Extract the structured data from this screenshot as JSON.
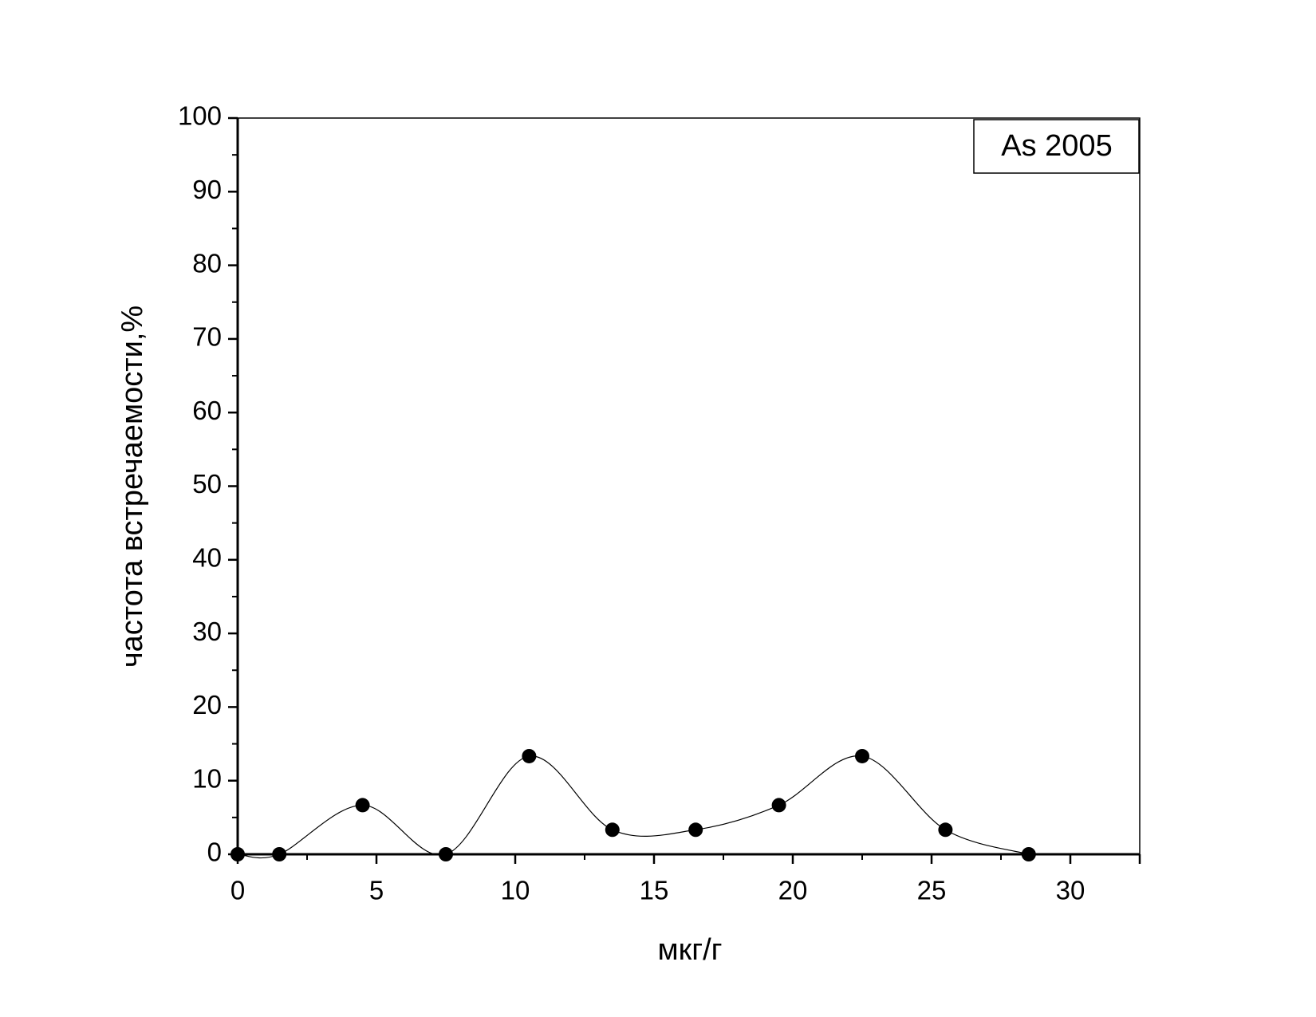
{
  "chart_data": {
    "type": "line",
    "x_label": "мкг/г",
    "y_label": "частота встречаемости,%",
    "series": [
      {
        "name": "As 2005",
        "color": "#000000",
        "x": [
          0,
          1.5,
          4.5,
          7.5,
          10.5,
          13.5,
          16.5,
          19.5,
          22.5,
          25.5,
          28.5
        ],
        "values": [
          0,
          0,
          6.67,
          0,
          13.33,
          3.33,
          3.33,
          6.67,
          13.33,
          3.33,
          0
        ]
      }
    ],
    "xlim": [
      0,
      32.5
    ],
    "xticks": [
      0,
      5,
      10,
      15,
      20,
      25,
      30
    ],
    "ylim": [
      0,
      100
    ],
    "yticks": [
      0,
      10,
      20,
      30,
      40,
      50,
      60,
      70,
      80,
      90,
      100
    ],
    "smooth": true,
    "markers": true,
    "legend": "top-right"
  }
}
